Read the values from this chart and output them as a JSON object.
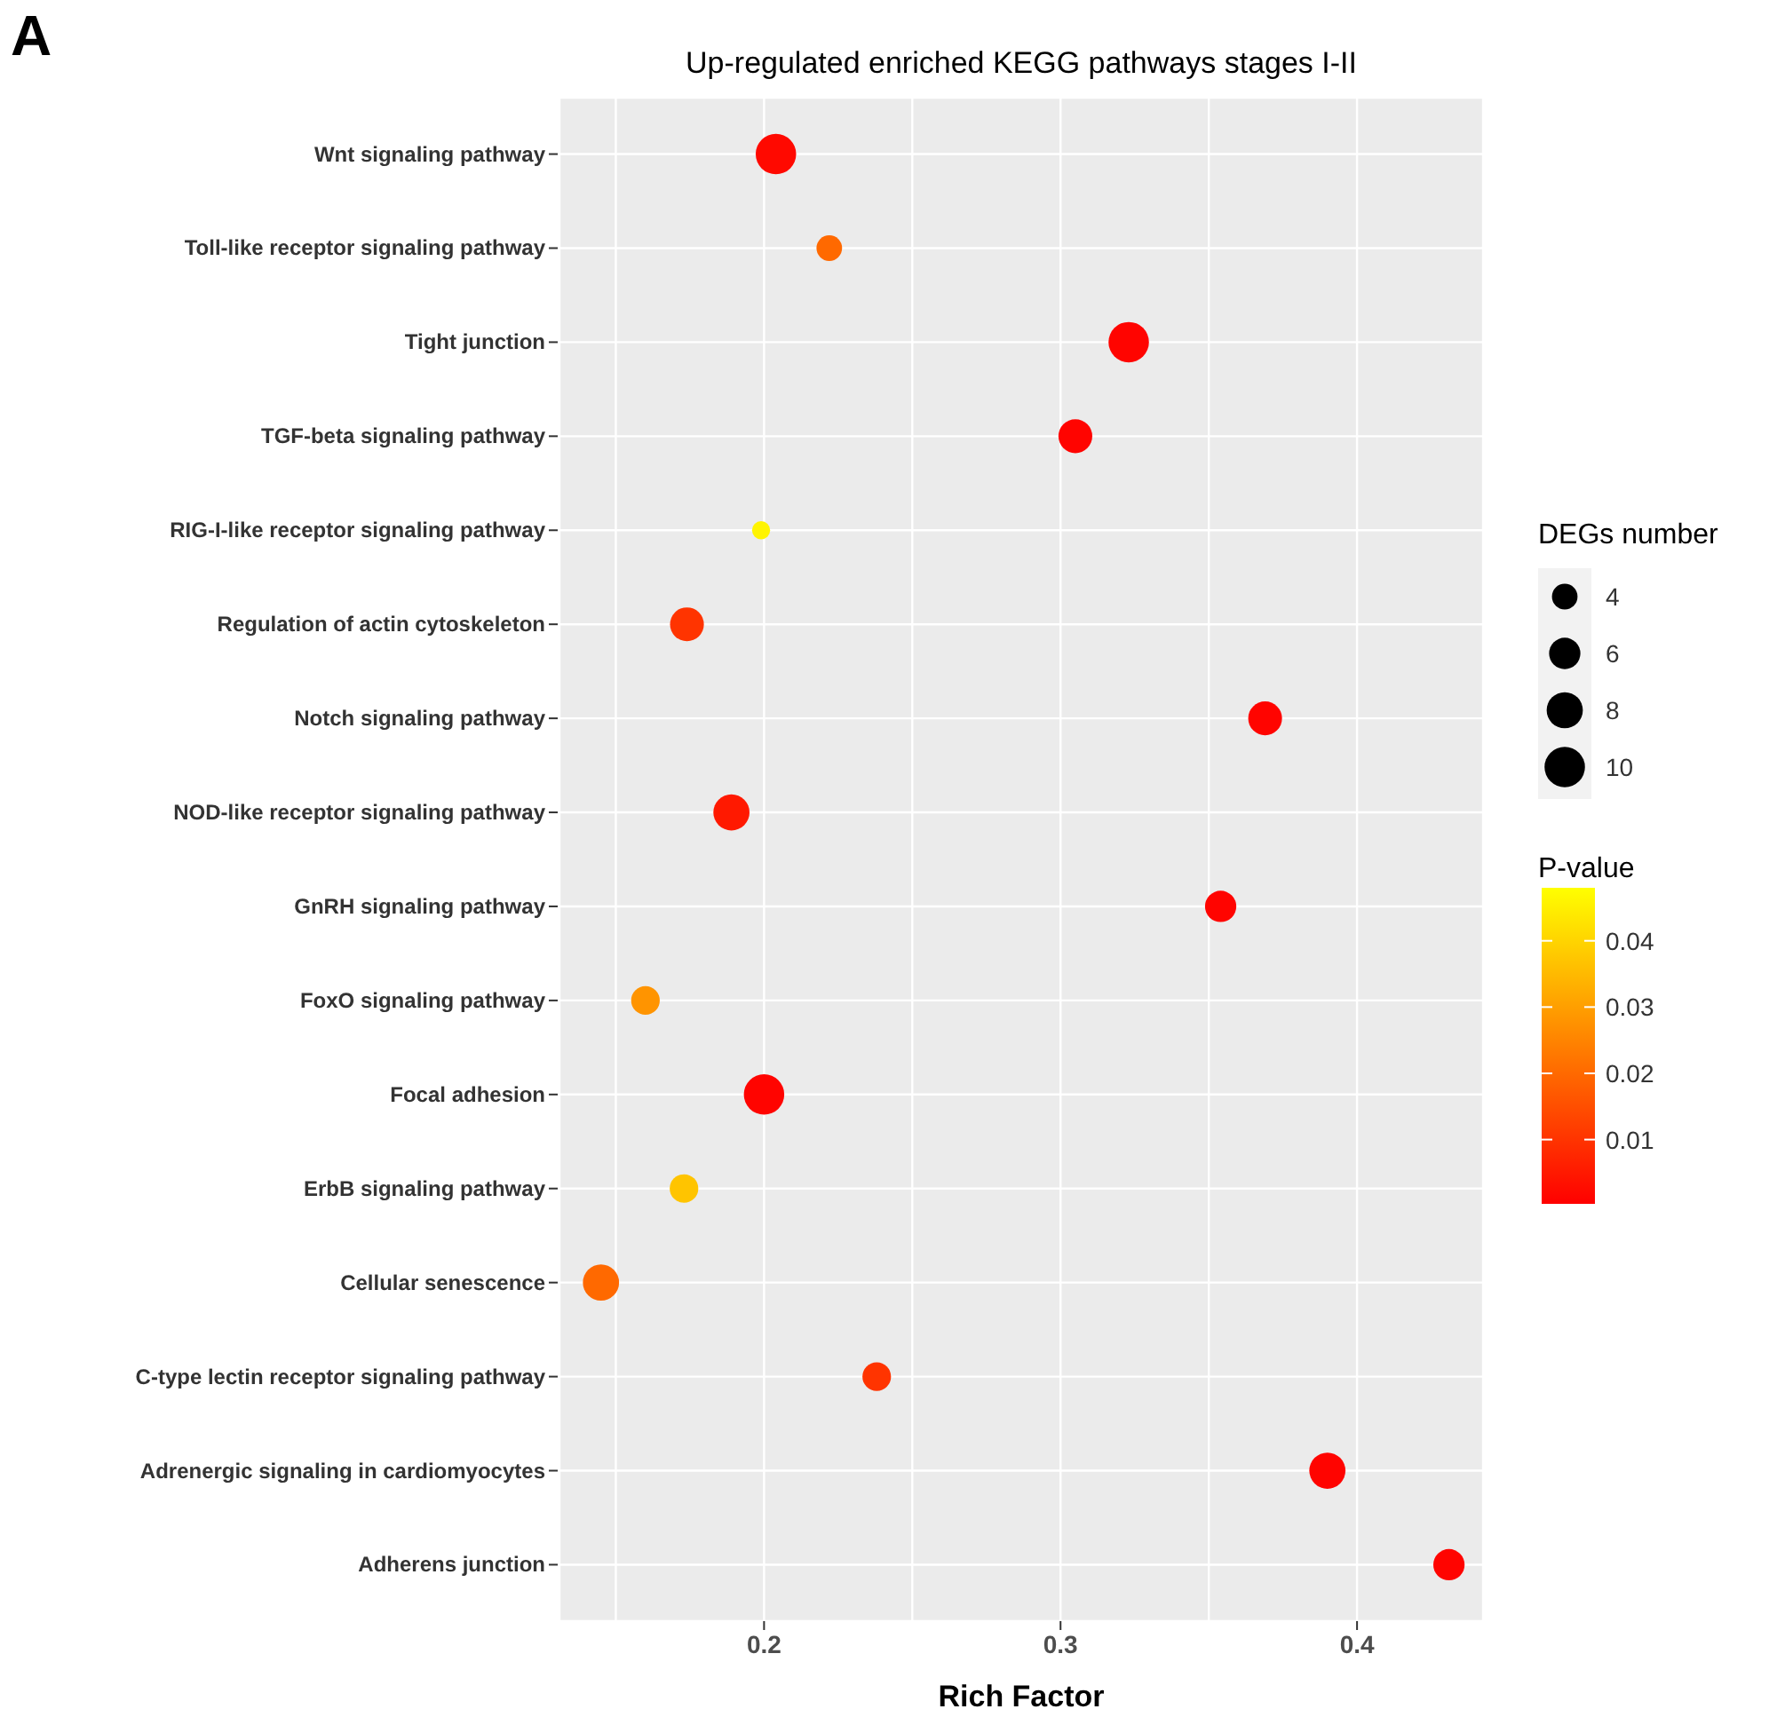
{
  "chart_data": {
    "type": "bubble",
    "title": "Up-regulated enriched KEGG pathways stages I-II",
    "annotations": [
      "A"
    ],
    "orientation": "horizontal",
    "categories": [
      "Wnt signaling pathway",
      "Toll-like receptor signaling pathway",
      "Tight junction",
      "TGF-beta signaling pathway",
      "RIG-I-like receptor signaling pathway",
      "Regulation of actin cytoskeleton",
      "Notch signaling pathway",
      "NOD-like receptor signaling pathway",
      "GnRH signaling pathway",
      "FoxO signaling pathway",
      "Focal adhesion",
      "ErbB signaling pathway",
      "Cellular senescence",
      "C-type lectin receptor signaling pathway",
      "Adrenergic signaling in cardiomyocytes",
      "Adherens junction"
    ],
    "values": [
      0.204,
      0.222,
      0.323,
      0.305,
      0.199,
      0.174,
      0.369,
      0.189,
      0.354,
      0.16,
      0.2,
      0.173,
      0.145,
      0.238,
      0.39,
      0.431
    ],
    "sizes": [
      10,
      4,
      10,
      7,
      2,
      7,
      7,
      8,
      6,
      5,
      10,
      5,
      8,
      5,
      8,
      6
    ],
    "cvalues": [
      0.002,
      0.02,
      0.001,
      0.001,
      0.046,
      0.01,
      0.001,
      0.005,
      0.001,
      0.028,
      0.001,
      0.037,
      0.02,
      0.01,
      0.001,
      0.001
    ],
    "size_legend": [
      4,
      6,
      8,
      10
    ],
    "legend_title": "DEGs number",
    "clabel": "P-value",
    "clim": [
      0.0003,
      0.048
    ],
    "cticks": [
      0.01,
      0.02,
      0.03,
      0.04
    ],
    "xlabel": "Rich Factor",
    "xlim": [
      0.131,
      0.4425
    ],
    "xticks": [
      {
        "value": 0.15,
        "label": null
      },
      0.2,
      {
        "value": 0.25,
        "label": null
      },
      0.3,
      {
        "value": 0.35,
        "label": null
      },
      0.4
    ],
    "grid": true,
    "marker": "circle"
  }
}
